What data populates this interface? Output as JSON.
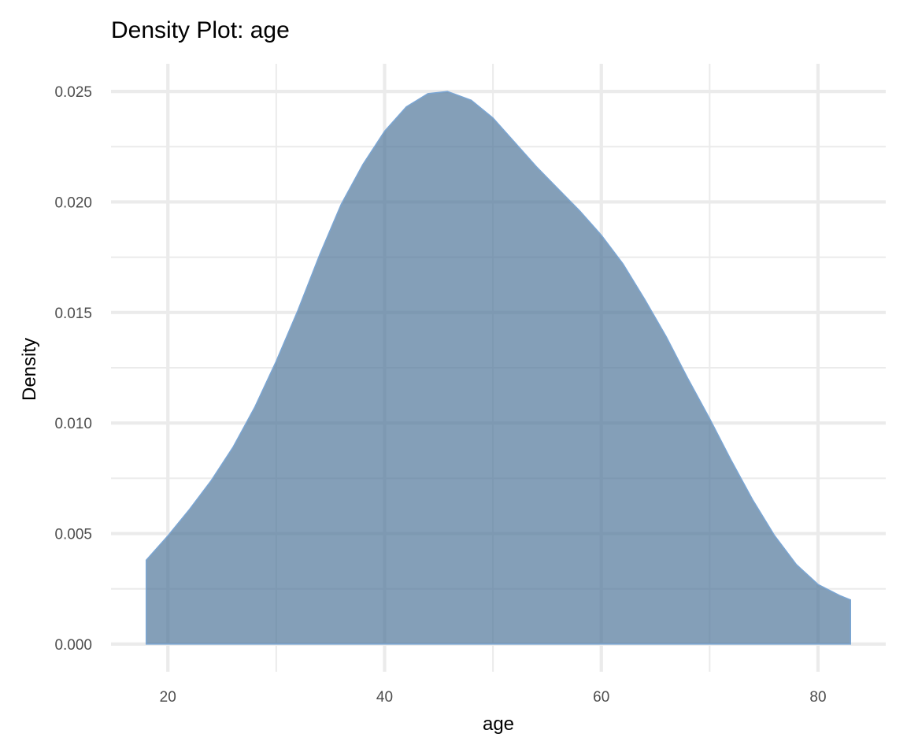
{
  "chart_data": {
    "type": "area",
    "title": "Density Plot: age",
    "xlabel": "age",
    "ylabel": "Density",
    "xlim": [
      14.75,
      86.25
    ],
    "ylim": [
      -0.00125,
      0.02625
    ],
    "x_ticks": [
      20,
      40,
      60,
      80
    ],
    "x_tick_labels": [
      "20",
      "40",
      "60",
      "80"
    ],
    "x_minor_ticks": [
      30,
      50,
      70
    ],
    "y_ticks": [
      0,
      0.005,
      0.01,
      0.015,
      0.02,
      0.025
    ],
    "y_tick_labels": [
      "0.000",
      "0.005",
      "0.010",
      "0.015",
      "0.020",
      "0.025"
    ],
    "y_minor_ticks": [
      0.0025,
      0.0075,
      0.0125,
      0.0175,
      0.0225
    ],
    "grid": true,
    "legend": "none",
    "fill_color": "#4a7196",
    "fill_opacity": 0.68,
    "line_color": "#7ba6d4",
    "x": [
      18,
      20,
      22,
      24,
      26,
      28,
      30,
      32,
      34,
      36,
      38,
      40,
      42,
      44,
      45.8,
      48,
      50,
      52,
      54,
      56,
      58,
      60,
      62,
      64,
      66,
      68,
      70,
      72,
      74,
      76,
      78,
      80,
      82,
      83
    ],
    "y": [
      0.0038,
      0.0049,
      0.0061,
      0.0074,
      0.0089,
      0.0107,
      0.0128,
      0.0151,
      0.0176,
      0.0199,
      0.0217,
      0.0232,
      0.0243,
      0.0249,
      0.025,
      0.0246,
      0.0238,
      0.0227,
      0.0216,
      0.0206,
      0.0196,
      0.0185,
      0.0172,
      0.0156,
      0.0139,
      0.012,
      0.0102,
      0.0083,
      0.0065,
      0.0049,
      0.0036,
      0.0027,
      0.0022,
      0.002
    ]
  }
}
